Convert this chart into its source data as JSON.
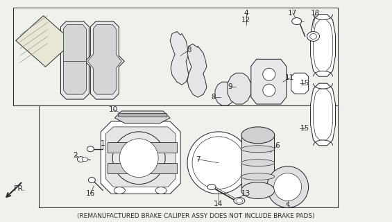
{
  "caption": "(REMANUFACTURED BRAKE CALIPER ASSY DOES NOT INCLUDE BRAKE PADS)",
  "bg_color": "#f0f0ec",
  "line_color": "#2a2a2a",
  "caption_fontsize": 6.5,
  "label_fontsize": 7.5,
  "lw": 0.75
}
